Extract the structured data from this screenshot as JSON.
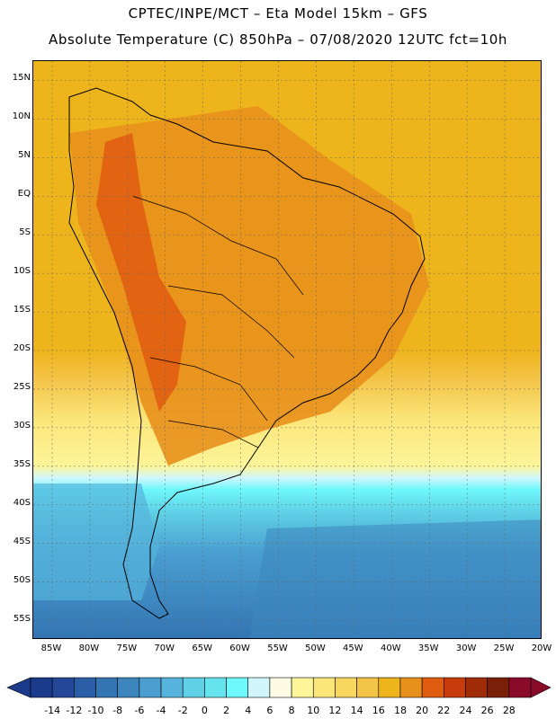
{
  "header": {
    "line1": "CPTEC/INPE/MCT –  Eta Model 15km – GFS",
    "line2": "Absolute Temperature (C) 850hPa – 07/08/2020 12UTC fct=10h"
  },
  "map": {
    "lat_ticks": [
      "15N",
      "10N",
      "5N",
      "EQ",
      "5S",
      "10S",
      "15S",
      "20S",
      "25S",
      "30S",
      "35S",
      "40S",
      "45S",
      "50S",
      "55S"
    ],
    "lon_ticks": [
      "85W",
      "80W",
      "75W",
      "70W",
      "65W",
      "60W",
      "55W",
      "50W",
      "45W",
      "40W",
      "35W",
      "30W",
      "25W",
      "20W"
    ],
    "lat_values": [
      15,
      10,
      5,
      0,
      -5,
      -10,
      -15,
      -20,
      -25,
      -30,
      -35,
      -40,
      -45,
      -50,
      -55
    ],
    "lon_values": [
      -85,
      -80,
      -75,
      -70,
      -65,
      -60,
      -55,
      -50,
      -45,
      -40,
      -35,
      -30,
      -25,
      -20
    ],
    "field": "Absolute Temperature (C) 850hPa",
    "region": "South America"
  },
  "legend": {
    "labels": [
      "-14",
      "-12",
      "-10",
      "-8",
      "-6",
      "-4",
      "-2",
      "0",
      "2",
      "4",
      "6",
      "8",
      "10",
      "12",
      "14",
      "16",
      "18",
      "20",
      "22",
      "24",
      "26",
      "28"
    ],
    "colors": [
      "#1c3a8a",
      "#25479a",
      "#2a5ea6",
      "#3374b3",
      "#3c86bd",
      "#4a9ed0",
      "#56b4dc",
      "#5fd0e6",
      "#66e4ee",
      "#6ef8fb",
      "#d0f6fb",
      "#fefbe4",
      "#fdf59a",
      "#fbe67a",
      "#f8d760",
      "#f4c448",
      "#eeb41c",
      "#e8901c",
      "#e05c10",
      "#c83c0c",
      "#a02c08",
      "#7a2008",
      "#8a0a2a"
    ]
  }
}
